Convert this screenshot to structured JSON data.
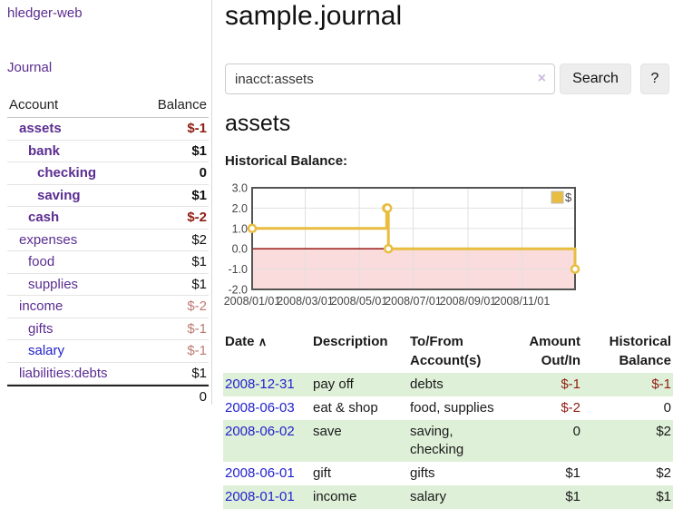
{
  "app": {
    "title": "hledger-web"
  },
  "sidebar": {
    "journal_link": "Journal",
    "accounts": {
      "header": {
        "account": "Account",
        "balance": "Balance"
      },
      "rows": [
        {
          "name": "assets",
          "balance": "$-1",
          "indent": 0,
          "bold": true,
          "balance_class": "neg-strong"
        },
        {
          "name": "bank",
          "balance": "$1",
          "indent": 1,
          "bold": true,
          "balance_class": "pos"
        },
        {
          "name": "checking",
          "balance": "0",
          "indent": 2,
          "bold": true,
          "balance_class": "pos"
        },
        {
          "name": "saving",
          "balance": "$1",
          "indent": 2,
          "bold": true,
          "balance_class": "pos"
        },
        {
          "name": "cash",
          "balance": "$-2",
          "indent": 1,
          "bold": true,
          "balance_class": "neg-strong"
        },
        {
          "name": "expenses",
          "balance": "$2",
          "indent": 0,
          "bold": false,
          "balance_class": "pos"
        },
        {
          "name": "food",
          "balance": "$1",
          "indent": 1,
          "bold": false,
          "balance_class": "pos"
        },
        {
          "name": "supplies",
          "balance": "$1",
          "indent": 1,
          "bold": false,
          "balance_class": "pos"
        },
        {
          "name": "income",
          "balance": "$-2",
          "indent": 0,
          "bold": false,
          "balance_class": "neg-soft"
        },
        {
          "name": "gifts",
          "balance": "$-1",
          "indent": 1,
          "bold": false,
          "balance_class": "neg-soft"
        },
        {
          "name": "salary",
          "balance": "$-1",
          "indent": 1,
          "bold": false,
          "balance_class": "neg-soft",
          "name_color": "blue"
        },
        {
          "name": "liabilities:debts",
          "balance": "$1",
          "indent": 0,
          "bold": false,
          "balance_class": "pos"
        }
      ],
      "total": "0"
    }
  },
  "main": {
    "title": "sample.journal",
    "search": {
      "value": "inacct:assets",
      "clear_icon": "×",
      "search_button": "Search",
      "help_button": "?"
    },
    "account_heading": "assets",
    "chart_label": "Historical Balance:"
  },
  "chart_data": {
    "type": "line",
    "step": true,
    "title": "Historical Balance",
    "series": [
      {
        "name": "$",
        "color": "#e8bd40",
        "points": [
          [
            "2008-01-01",
            1
          ],
          [
            "2008-06-01",
            2
          ],
          [
            "2008-06-02",
            2
          ],
          [
            "2008-06-03",
            0
          ],
          [
            "2008-12-31",
            -1
          ]
        ]
      }
    ],
    "x_start": "2008-01-01",
    "x_end": "2008-12-31",
    "x_tick_dates": [
      "2008-01-01",
      "2008-03-01",
      "2008-05-01",
      "2008-07-01",
      "2008-09-01",
      "2008-11-01"
    ],
    "x_tick_labels": [
      "2008/01/01",
      "2008/03/01",
      "2008/05/01",
      "2008/07/01",
      "2008/09/01",
      "2008/11/01"
    ],
    "y_ticks": [
      "3.0",
      "2.0",
      "1.0",
      "0.0",
      "-1.0",
      "-2.0"
    ],
    "ylim": [
      -2,
      3
    ],
    "grid": true,
    "legend": {
      "label": "$",
      "position": "top-right"
    },
    "negative_region_color": "#fbdcdc",
    "zero_line_color": "#8b0000",
    "plot_border_color": "#545454",
    "grid_color": "#e0e0e0"
  },
  "register": {
    "headers": {
      "date": "Date",
      "sort_icon": "∧",
      "description": "Description",
      "accounts": "To/From\nAccount(s)",
      "amount": "Amount\nOut/In",
      "balance": "Historical\nBalance"
    },
    "rows": [
      {
        "date": "2008-12-31",
        "description": "pay off",
        "accounts": "debts",
        "amount": "$-1",
        "amount_negative": true,
        "balance": "$-1",
        "balance_negative": true
      },
      {
        "date": "2008-06-03",
        "description": "eat & shop",
        "accounts": "food, supplies",
        "amount": "$-2",
        "amount_negative": true,
        "balance": "0",
        "balance_negative": false
      },
      {
        "date": "2008-06-02",
        "description": "save",
        "accounts": "saving,\nchecking",
        "amount": "0",
        "amount_negative": false,
        "balance": "$2",
        "balance_negative": false
      },
      {
        "date": "2008-06-01",
        "description": "gift",
        "accounts": "gifts",
        "amount": "$1",
        "amount_negative": false,
        "balance": "$2",
        "balance_negative": false
      },
      {
        "date": "2008-01-01",
        "description": "income",
        "accounts": "salary",
        "amount": "$1",
        "amount_negative": false,
        "balance": "$1",
        "balance_negative": false
      }
    ]
  }
}
